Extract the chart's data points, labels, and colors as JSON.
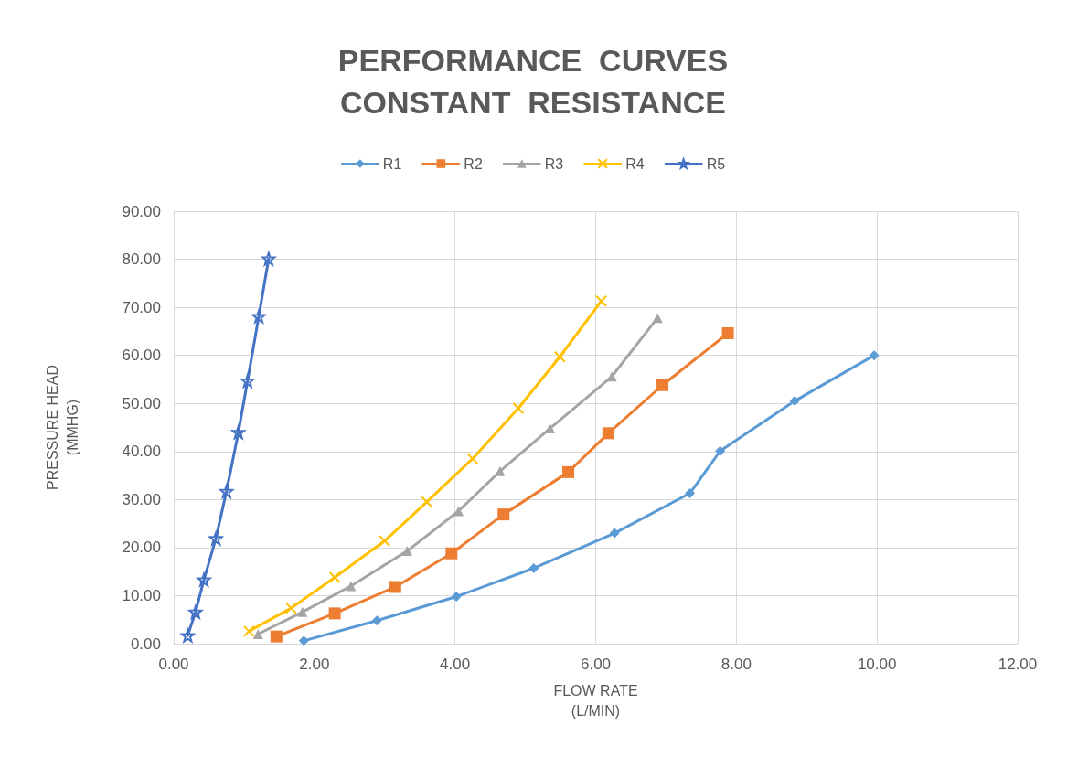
{
  "chart_data": {
    "type": "line",
    "title": "PERFORMANCE  CURVES\nCONSTANT  RESISTANCE",
    "xlabel": "FLOW RATE\n(L/MIN)",
    "ylabel": "PRESSURE HEAD\n(MMHG)",
    "xlim": [
      0,
      12
    ],
    "ylim": [
      0,
      90
    ],
    "xticks": [
      {
        "value": 0,
        "label": "0.00"
      },
      {
        "value": 2,
        "label": "2.00"
      },
      {
        "value": 4,
        "label": "4.00"
      },
      {
        "value": 6,
        "label": "6.00"
      },
      {
        "value": 8,
        "label": "8.00"
      },
      {
        "value": 10,
        "label": "10.00"
      },
      {
        "value": 12,
        "label": "12.00"
      }
    ],
    "yticks": [
      {
        "value": 0,
        "label": "0.00"
      },
      {
        "value": 10,
        "label": "10.00"
      },
      {
        "value": 20,
        "label": "20.00"
      },
      {
        "value": 30,
        "label": "30.00"
      },
      {
        "value": 40,
        "label": "40.00"
      },
      {
        "value": 50,
        "label": "50.00"
      },
      {
        "value": 60,
        "label": "60.00"
      },
      {
        "value": 70,
        "label": "70.00"
      },
      {
        "value": 80,
        "label": "80.00"
      },
      {
        "value": 90,
        "label": "90.00"
      }
    ],
    "grid": true,
    "legend": "top",
    "line_style": "solid",
    "series": [
      {
        "name": "R1",
        "color": "#5b9bd5",
        "marker": "diamond",
        "x": [
          1.85,
          2.89,
          4.02,
          5.12,
          6.27,
          7.34,
          7.77,
          8.83,
          9.96
        ],
        "values": [
          0.6,
          4.8,
          9.8,
          15.7,
          23.0,
          31.3,
          40.1,
          50.5,
          60.0
        ]
      },
      {
        "name": "R2",
        "color": "#ed7d31",
        "marker": "square",
        "x": [
          1.46,
          2.29,
          3.15,
          3.95,
          4.69,
          5.61,
          6.18,
          6.95,
          7.88
        ],
        "values": [
          1.5,
          6.3,
          11.8,
          18.8,
          26.9,
          35.7,
          43.8,
          53.8,
          64.6
        ]
      },
      {
        "name": "R3",
        "color": "#a5a5a5",
        "marker": "triangle",
        "x": [
          1.2,
          1.83,
          2.52,
          3.32,
          4.05,
          4.64,
          5.35,
          6.23,
          6.88
        ],
        "values": [
          2.0,
          6.6,
          12.0,
          19.3,
          27.6,
          35.9,
          44.8,
          55.6,
          67.8
        ]
      },
      {
        "name": "R4",
        "color": "#ffc000",
        "marker": "cross",
        "x": [
          1.07,
          1.67,
          2.29,
          3.0,
          3.6,
          4.25,
          4.9,
          5.49,
          6.08
        ],
        "values": [
          2.6,
          7.4,
          13.8,
          21.4,
          29.5,
          38.5,
          49.0,
          59.7,
          71.3
        ]
      },
      {
        "name": "R5",
        "color": "#4472c4",
        "marker": "star",
        "x": [
          0.2,
          0.31,
          0.43,
          0.6,
          0.75,
          0.92,
          1.05,
          1.21,
          1.35
        ],
        "values": [
          1.7,
          6.6,
          13.3,
          21.9,
          31.7,
          44.0,
          54.7,
          68.1,
          80.1
        ]
      }
    ]
  }
}
